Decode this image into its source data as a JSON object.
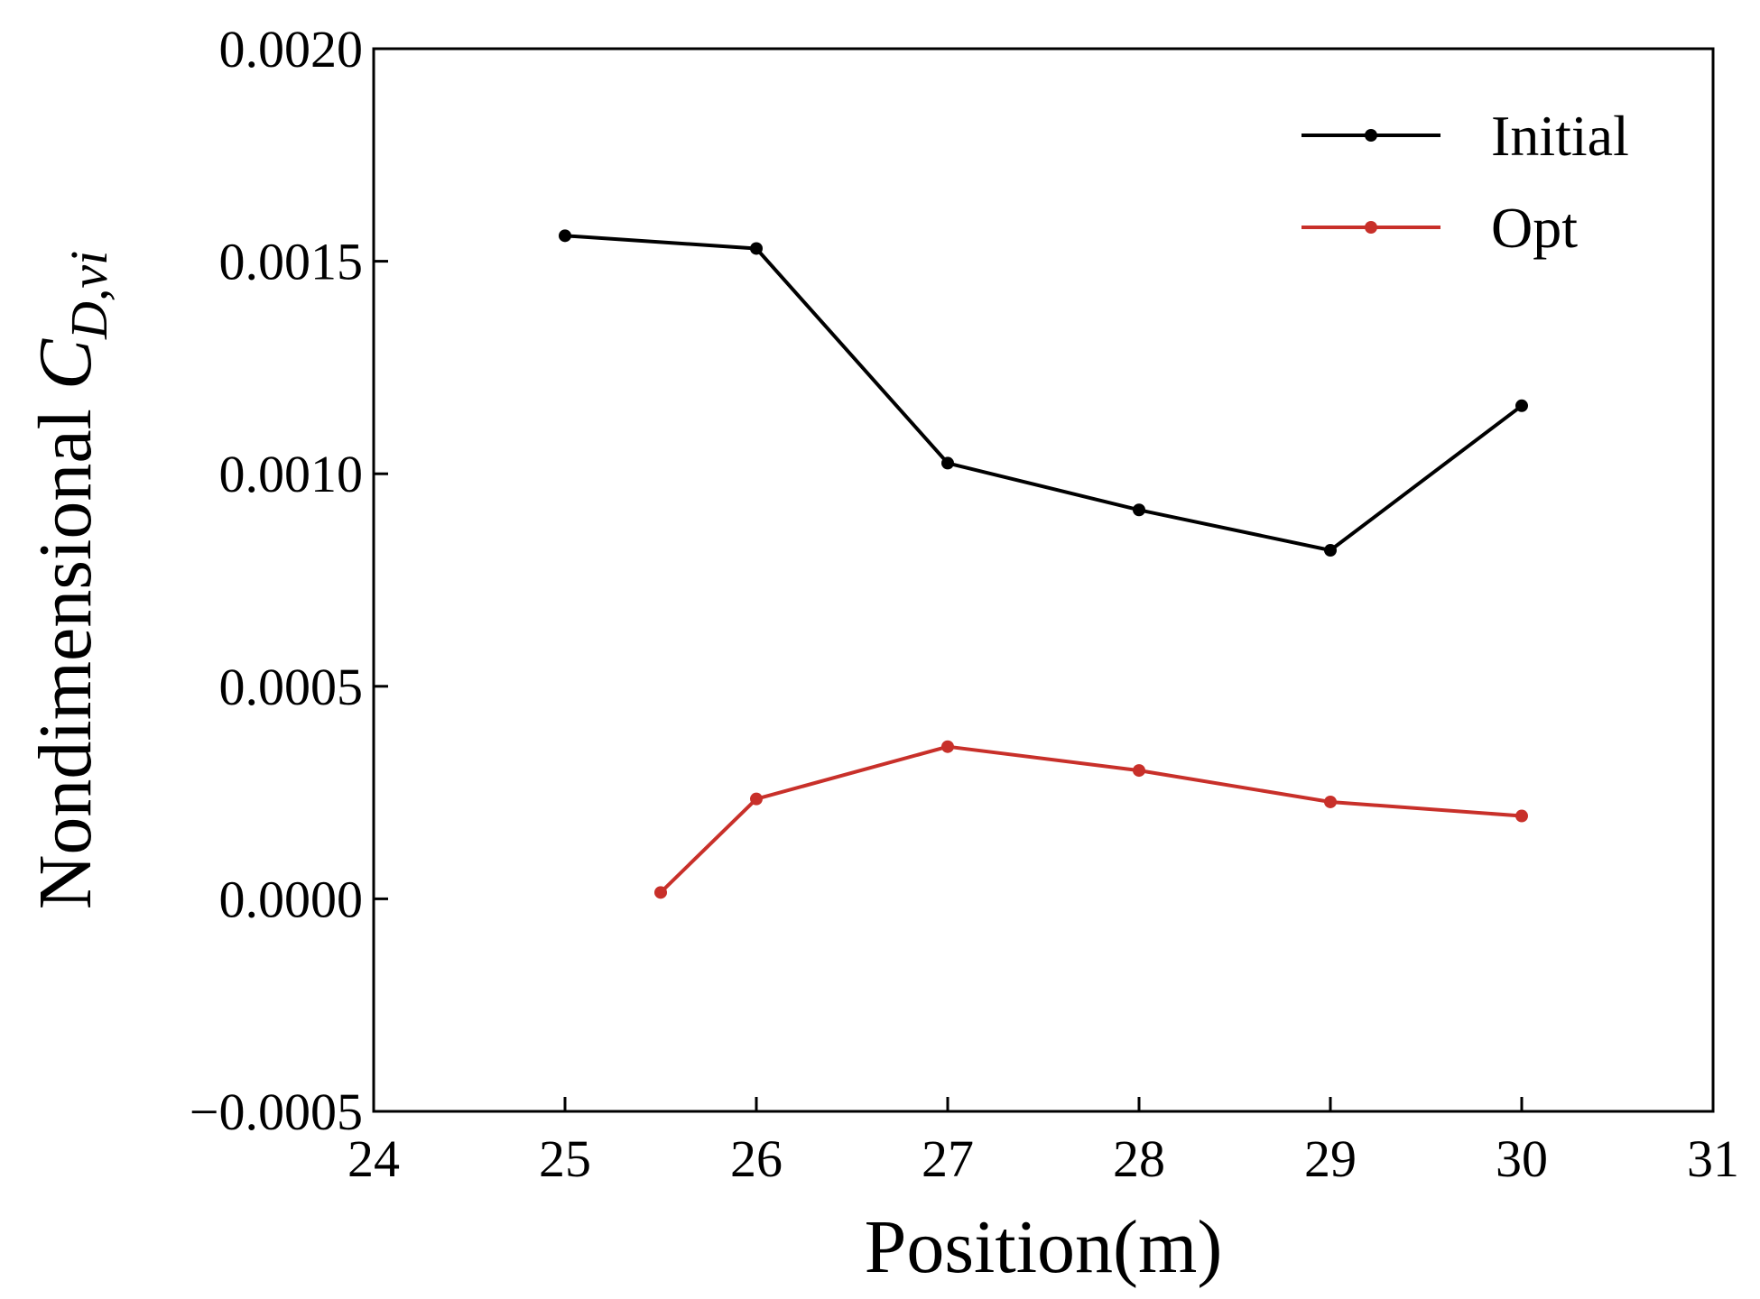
{
  "chart_data": {
    "type": "line",
    "xlabel": "Position(m)",
    "ylabel": {
      "prefix": "Nondimensional ",
      "symbol": "C",
      "subscript": "D,vi"
    },
    "xlim": [
      24,
      31
    ],
    "ylim": [
      -0.0005,
      0.002
    ],
    "x_ticks": [
      "24",
      "25",
      "26",
      "27",
      "28",
      "29",
      "30",
      "31"
    ],
    "x_tick_values": [
      24,
      25,
      26,
      27,
      28,
      29,
      30,
      31
    ],
    "y_ticks": [
      "-0.0005",
      "0.0000",
      "0.0005",
      "0.0010",
      "0.0015",
      "0.0020"
    ],
    "y_tick_values": [
      -0.0005,
      0.0,
      0.0005,
      0.001,
      0.0015,
      0.002
    ],
    "grid": false,
    "legend_position": "top-right",
    "series": [
      {
        "name": "Initial",
        "color": "#000000",
        "x": [
          25,
          26,
          27,
          28,
          29,
          30
        ],
        "y": [
          0.00156,
          0.00153,
          0.001025,
          0.000915,
          0.00082,
          0.00116
        ]
      },
      {
        "name": "Opt",
        "color": "#c8302a",
        "x": [
          25.5,
          26,
          27,
          28,
          29,
          30
        ],
        "y": [
          1.5e-05,
          0.000235,
          0.000358,
          0.000302,
          0.000228,
          0.000195
        ]
      }
    ]
  }
}
